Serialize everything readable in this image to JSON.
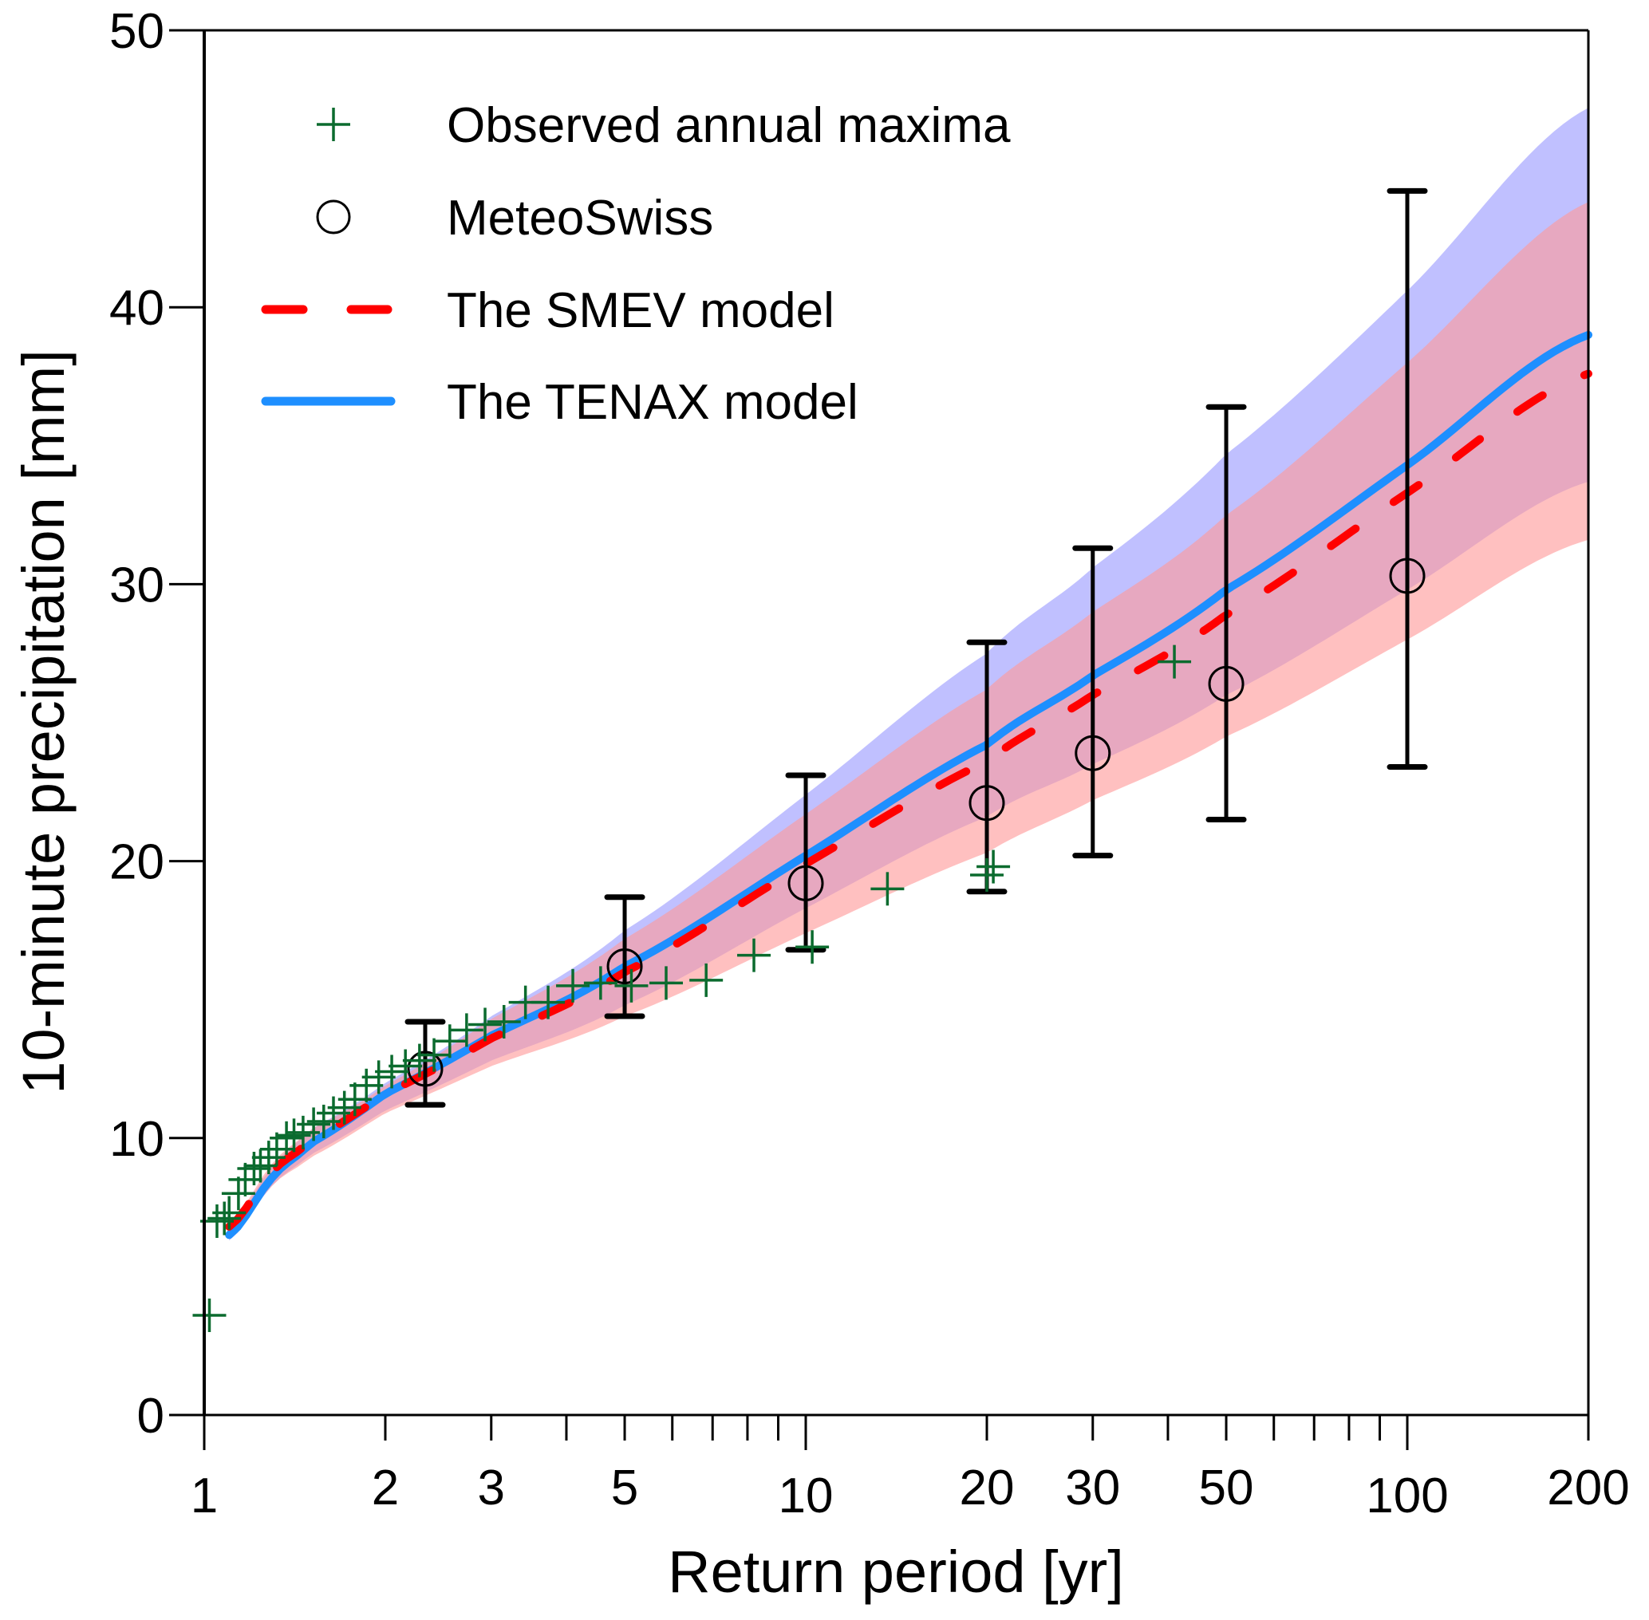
{
  "chart_data": {
    "type": "scatter",
    "title": "",
    "xlabel": "Return period [yr]",
    "ylabel": "10-minute precipitation [mm]",
    "xscale": "log",
    "xlim": [
      1,
      200
    ],
    "ylim": [
      0,
      50
    ],
    "grid": false,
    "legend_position": "top-left",
    "x_ticks": [
      {
        "value": 1,
        "label": "1",
        "major": true
      },
      {
        "value": 2,
        "label": "2",
        "major": false
      },
      {
        "value": 3,
        "label": "3",
        "major": false
      },
      {
        "value": 4,
        "label": "",
        "major": false
      },
      {
        "value": 5,
        "label": "5",
        "major": false
      },
      {
        "value": 6,
        "label": "",
        "major": false
      },
      {
        "value": 7,
        "label": "",
        "major": false
      },
      {
        "value": 8,
        "label": "",
        "major": false
      },
      {
        "value": 9,
        "label": "",
        "major": false
      },
      {
        "value": 10,
        "label": "10",
        "major": true
      },
      {
        "value": 20,
        "label": "20",
        "major": false
      },
      {
        "value": 30,
        "label": "30",
        "major": false
      },
      {
        "value": 40,
        "label": "",
        "major": false
      },
      {
        "value": 50,
        "label": "50",
        "major": false
      },
      {
        "value": 60,
        "label": "",
        "major": false
      },
      {
        "value": 70,
        "label": "",
        "major": false
      },
      {
        "value": 80,
        "label": "",
        "major": false
      },
      {
        "value": 90,
        "label": "",
        "major": false
      },
      {
        "value": 100,
        "label": "100",
        "major": true
      },
      {
        "value": 200,
        "label": "200",
        "major": false
      }
    ],
    "y_ticks": [
      {
        "value": 0,
        "label": "0"
      },
      {
        "value": 10,
        "label": "10"
      },
      {
        "value": 20,
        "label": "20"
      },
      {
        "value": 30,
        "label": "30"
      },
      {
        "value": 40,
        "label": "40"
      },
      {
        "value": 50,
        "label": "50"
      }
    ],
    "legend": [
      {
        "key": "observed",
        "label": "Observed annual maxima",
        "marker": "plus",
        "color": "#0b6b2e"
      },
      {
        "key": "meteoswiss",
        "label": "MeteoSwiss",
        "marker": "circle",
        "color": "#000000"
      },
      {
        "key": "smev",
        "label": "The SMEV model",
        "marker": "dashed-line",
        "color": "#ff0000"
      },
      {
        "key": "tenax",
        "label": "The TENAX model",
        "marker": "solid-line",
        "color": "#1e8fff"
      }
    ],
    "series": [
      {
        "name": "Observed annual maxima",
        "type": "scatter",
        "marker": "plus",
        "color": "#0b6b2e",
        "points": [
          {
            "x": 1.02,
            "y": 3.6
          },
          {
            "x": 1.05,
            "y": 7.0
          },
          {
            "x": 1.08,
            "y": 7.1
          },
          {
            "x": 1.1,
            "y": 7.3
          },
          {
            "x": 1.14,
            "y": 8.0
          },
          {
            "x": 1.17,
            "y": 8.5
          },
          {
            "x": 1.21,
            "y": 8.9
          },
          {
            "x": 1.24,
            "y": 9.0
          },
          {
            "x": 1.28,
            "y": 9.3
          },
          {
            "x": 1.32,
            "y": 9.6
          },
          {
            "x": 1.37,
            "y": 10.0
          },
          {
            "x": 1.41,
            "y": 10.1
          },
          {
            "x": 1.46,
            "y": 10.2
          },
          {
            "x": 1.52,
            "y": 10.5
          },
          {
            "x": 1.58,
            "y": 10.6
          },
          {
            "x": 1.64,
            "y": 10.9
          },
          {
            "x": 1.71,
            "y": 11.1
          },
          {
            "x": 1.78,
            "y": 11.4
          },
          {
            "x": 1.86,
            "y": 11.9
          },
          {
            "x": 1.95,
            "y": 12.2
          },
          {
            "x": 2.05,
            "y": 12.4
          },
          {
            "x": 2.16,
            "y": 12.6
          },
          {
            "x": 2.28,
            "y": 12.8
          },
          {
            "x": 2.41,
            "y": 13.0
          },
          {
            "x": 2.56,
            "y": 13.5
          },
          {
            "x": 2.73,
            "y": 13.9
          },
          {
            "x": 2.93,
            "y": 14.1
          },
          {
            "x": 3.15,
            "y": 14.2
          },
          {
            "x": 3.42,
            "y": 14.9
          },
          {
            "x": 3.73,
            "y": 14.9
          },
          {
            "x": 4.1,
            "y": 15.5
          },
          {
            "x": 4.56,
            "y": 15.6
          },
          {
            "x": 5.13,
            "y": 15.5
          },
          {
            "x": 5.86,
            "y": 15.6
          },
          {
            "x": 6.83,
            "y": 15.7
          },
          {
            "x": 8.2,
            "y": 16.6
          },
          {
            "x": 10.25,
            "y": 16.9
          },
          {
            "x": 13.67,
            "y": 19.0
          },
          {
            "x": 20.0,
            "y": 19.5
          },
          {
            "x": 20.5,
            "y": 19.8
          },
          {
            "x": 41.0,
            "y": 27.2
          }
        ]
      },
      {
        "name": "MeteoSwiss",
        "type": "errorbar",
        "marker": "circle",
        "color": "#000000",
        "points": [
          {
            "x": 2.33,
            "y": 12.5,
            "low": 11.2,
            "high": 14.2
          },
          {
            "x": 5,
            "y": 16.2,
            "low": 14.4,
            "high": 18.7
          },
          {
            "x": 10,
            "y": 19.2,
            "low": 16.8,
            "high": 23.1
          },
          {
            "x": 20,
            "y": 22.1,
            "low": 18.9,
            "high": 27.9
          },
          {
            "x": 30,
            "y": 23.9,
            "low": 20.2,
            "high": 31.3
          },
          {
            "x": 50,
            "y": 26.4,
            "low": 21.5,
            "high": 36.4
          },
          {
            "x": 100,
            "y": 30.3,
            "low": 23.4,
            "high": 44.2
          }
        ]
      },
      {
        "name": "The SMEV model",
        "type": "line",
        "style": "dashed",
        "color": "#ff0000",
        "band_color": "#ff9999",
        "x": [
          1.1,
          1.3,
          1.5,
          2,
          3,
          5,
          10,
          20,
          30,
          50,
          100,
          200
        ],
        "y": [
          6.8,
          8.8,
          9.9,
          11.6,
          13.6,
          16.0,
          19.9,
          23.6,
          26.0,
          28.9,
          33.3,
          37.6
        ],
        "band_low": [
          6.4,
          8.3,
          9.3,
          10.9,
          12.6,
          14.4,
          17.4,
          20.3,
          22.2,
          24.5,
          28.0,
          31.6
        ],
        "band_high": [
          6.9,
          9.1,
          10.3,
          11.9,
          14.3,
          17.2,
          21.7,
          26.2,
          29.0,
          32.5,
          38.0,
          43.8
        ]
      },
      {
        "name": "The TENAX model",
        "type": "line",
        "style": "solid",
        "color": "#1e8fff",
        "band_color": "#9999ff",
        "x": [
          1.1,
          1.3,
          1.5,
          2,
          3,
          5,
          10,
          20,
          30,
          50,
          100,
          200
        ],
        "y": [
          6.5,
          8.6,
          9.8,
          11.6,
          13.7,
          16.2,
          20.2,
          24.2,
          26.7,
          29.8,
          34.3,
          39.0
        ],
        "band_low": [
          6.3,
          8.3,
          9.4,
          11.0,
          12.8,
          14.8,
          18.3,
          21.6,
          23.5,
          26.0,
          29.8,
          33.7
        ],
        "band_high": [
          6.8,
          9.0,
          10.3,
          12.0,
          14.4,
          17.5,
          22.4,
          27.5,
          30.6,
          34.7,
          40.6,
          47.2
        ]
      }
    ]
  }
}
